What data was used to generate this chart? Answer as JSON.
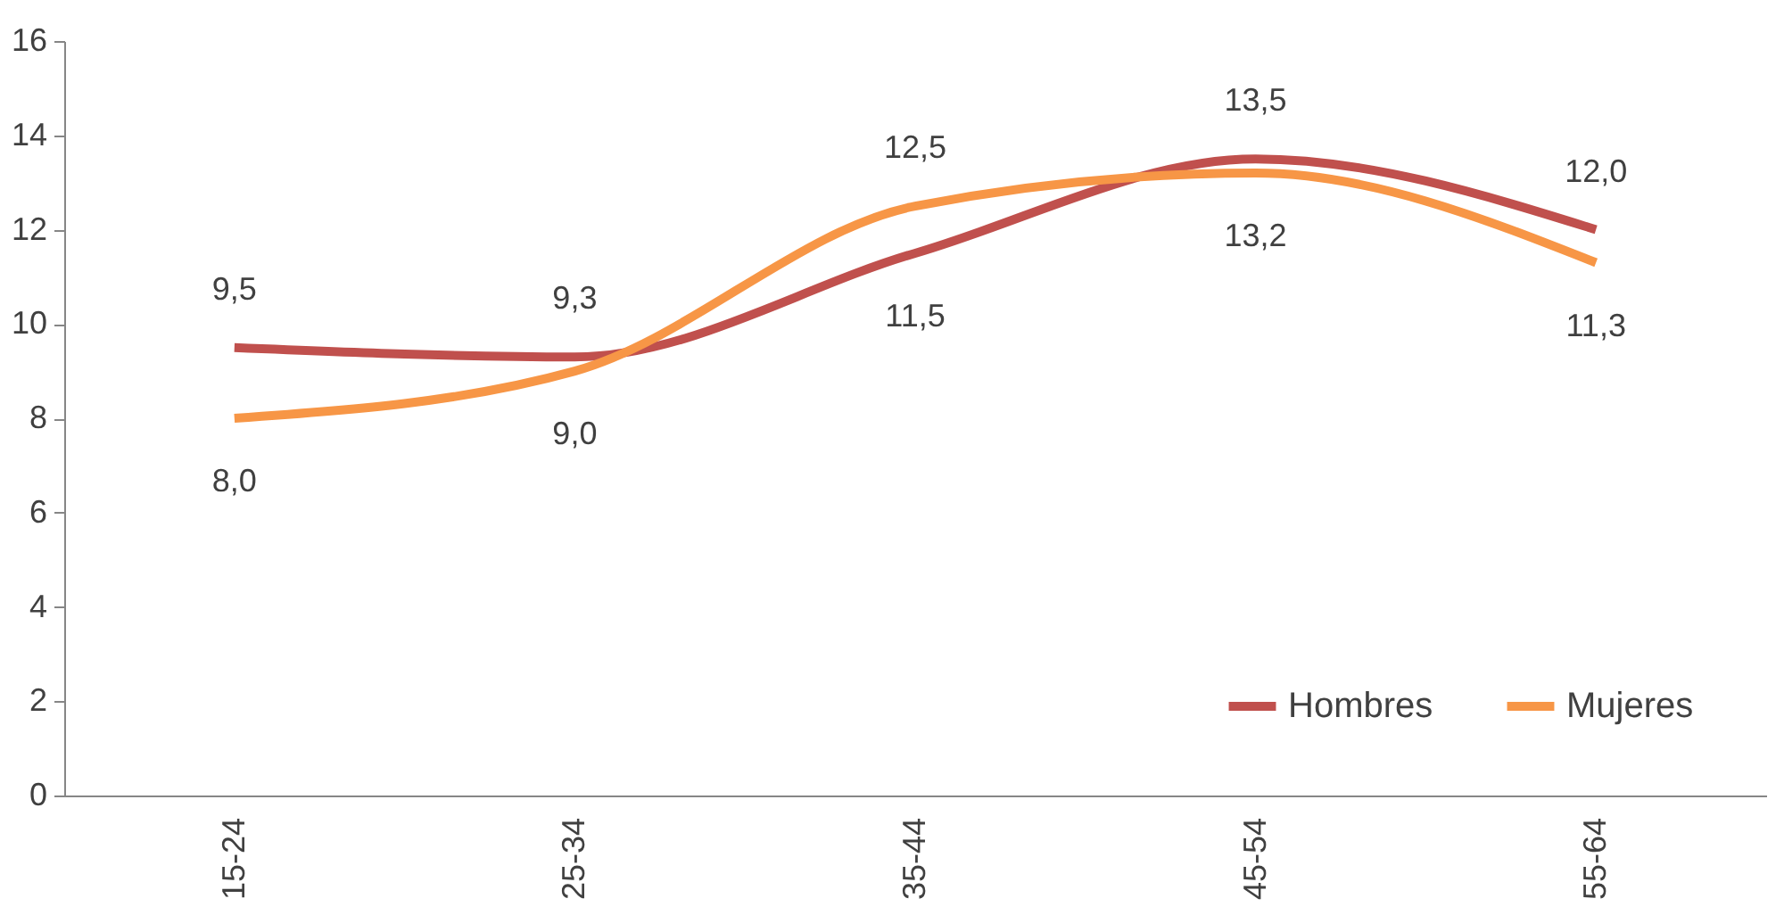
{
  "chart_data": {
    "type": "line",
    "categories": [
      "15-24",
      "25-34",
      "35-44",
      "45-54",
      "55-64"
    ],
    "series": [
      {
        "name": "Hombres",
        "color": "#c0504d",
        "values": [
          9.5,
          9.3,
          11.5,
          13.5,
          12.0
        ],
        "value_labels": [
          "9,5",
          "9,3",
          "11,5",
          "13,5",
          "12,0"
        ]
      },
      {
        "name": "Mujeres",
        "color": "#f79646",
        "values": [
          8.0,
          9.0,
          12.5,
          13.2,
          11.3
        ],
        "value_labels": [
          "8,0",
          "9,0",
          "12,5",
          "13,2",
          "11,3"
        ]
      }
    ],
    "ylim": [
      0,
      16
    ],
    "yticks": [
      0,
      2,
      4,
      6,
      8,
      10,
      12,
      14,
      16
    ],
    "grid": false,
    "legend": "bottom right",
    "marker": "none",
    "line_style": "solid"
  }
}
